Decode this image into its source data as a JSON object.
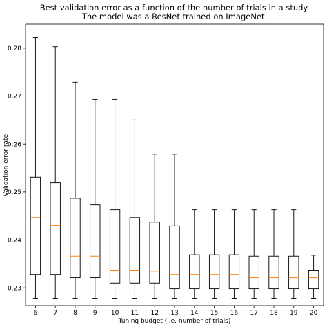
{
  "chart_data": {
    "type": "boxplot",
    "title": [
      "Best validation error as a function of the number of trials in a study.",
      "The model was a ResNet trained on ImageNet."
    ],
    "xlabel": "Tuning budget (i.e. number of trials)",
    "ylabel": "Validation error rate",
    "ylim": [
      0.2263,
      0.285
    ],
    "yticks": [
      0.23,
      0.24,
      0.25,
      0.26,
      0.27,
      0.28
    ],
    "grid": false,
    "colors": {
      "box": "#000000",
      "median": "#ff7f0e"
    },
    "boxes": [
      {
        "x": "6",
        "whislo": 0.2278,
        "q1": 0.2328,
        "med": 0.2447,
        "q3": 0.2531,
        "whishi": 0.2822
      },
      {
        "x": "7",
        "whislo": 0.2278,
        "q1": 0.2328,
        "med": 0.243,
        "q3": 0.2519,
        "whishi": 0.2803
      },
      {
        "x": "8",
        "whislo": 0.2278,
        "q1": 0.2321,
        "med": 0.2366,
        "q3": 0.2487,
        "whishi": 0.2729
      },
      {
        "x": "9",
        "whislo": 0.2278,
        "q1": 0.2321,
        "med": 0.2366,
        "q3": 0.2473,
        "whishi": 0.2693
      },
      {
        "x": "10",
        "whislo": 0.2278,
        "q1": 0.231,
        "med": 0.2337,
        "q3": 0.2463,
        "whishi": 0.2693
      },
      {
        "x": "11",
        "whislo": 0.2278,
        "q1": 0.231,
        "med": 0.2337,
        "q3": 0.2447,
        "whishi": 0.265
      },
      {
        "x": "12",
        "whislo": 0.2278,
        "q1": 0.231,
        "med": 0.2335,
        "q3": 0.2437,
        "whishi": 0.2579
      },
      {
        "x": "13",
        "whislo": 0.2278,
        "q1": 0.2298,
        "med": 0.2328,
        "q3": 0.2429,
        "whishi": 0.2579
      },
      {
        "x": "14",
        "whislo": 0.2278,
        "q1": 0.2298,
        "med": 0.2328,
        "q3": 0.2369,
        "whishi": 0.2463
      },
      {
        "x": "15",
        "whislo": 0.2278,
        "q1": 0.2298,
        "med": 0.2328,
        "q3": 0.2369,
        "whishi": 0.2463
      },
      {
        "x": "16",
        "whislo": 0.2278,
        "q1": 0.2298,
        "med": 0.2328,
        "q3": 0.2369,
        "whishi": 0.2463
      },
      {
        "x": "17",
        "whislo": 0.2278,
        "q1": 0.2298,
        "med": 0.2321,
        "q3": 0.2366,
        "whishi": 0.2463
      },
      {
        "x": "18",
        "whislo": 0.2278,
        "q1": 0.2298,
        "med": 0.2321,
        "q3": 0.2366,
        "whishi": 0.2463
      },
      {
        "x": "19",
        "whislo": 0.2278,
        "q1": 0.2298,
        "med": 0.2321,
        "q3": 0.2366,
        "whishi": 0.2463
      },
      {
        "x": "20",
        "whislo": 0.2278,
        "q1": 0.2298,
        "med": 0.2321,
        "q3": 0.2337,
        "whishi": 0.2368
      }
    ]
  }
}
